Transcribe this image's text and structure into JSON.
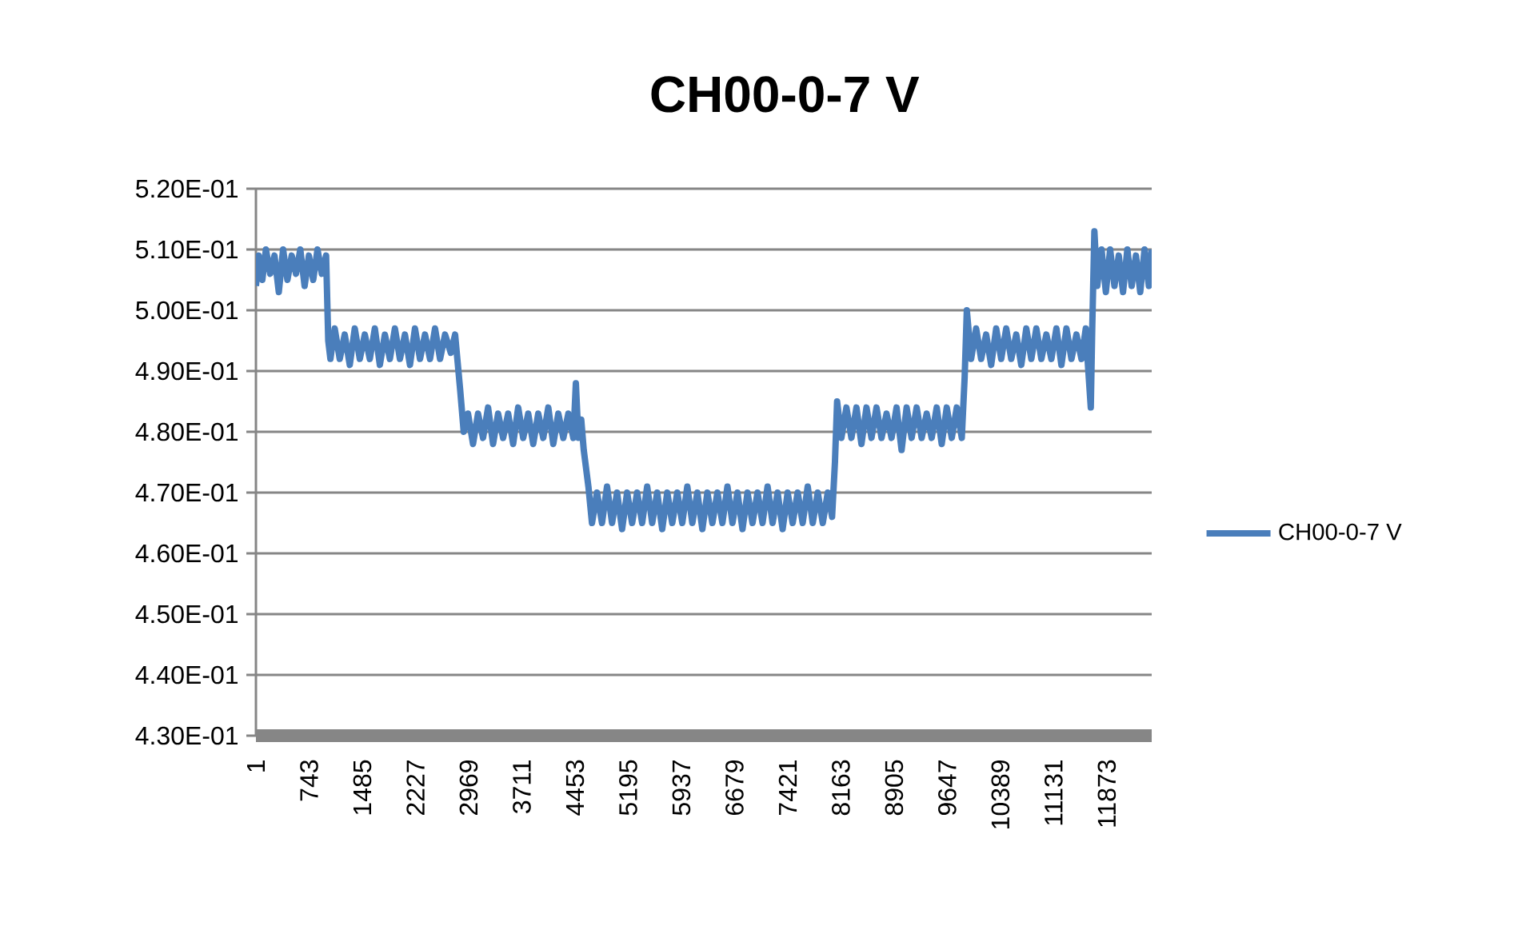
{
  "chart_data": {
    "type": "line",
    "title": "CH00-0-7 V",
    "x": [
      1,
      40,
      90,
      140,
      200,
      260,
      320,
      380,
      440,
      500,
      560,
      620,
      680,
      740,
      800,
      860,
      920,
      980,
      1010,
      1040,
      1100,
      1170,
      1240,
      1310,
      1380,
      1450,
      1520,
      1590,
      1660,
      1730,
      1800,
      1870,
      1940,
      2010,
      2080,
      2150,
      2220,
      2290,
      2360,
      2430,
      2500,
      2570,
      2640,
      2720,
      2780,
      2850,
      2900,
      2960,
      3030,
      3100,
      3170,
      3240,
      3310,
      3380,
      3450,
      3520,
      3590,
      3660,
      3730,
      3800,
      3870,
      3940,
      4010,
      4080,
      4150,
      4220,
      4290,
      4360,
      4430,
      4465,
      4500,
      4540,
      4575,
      4640,
      4690,
      4760,
      4830,
      4900,
      4970,
      5040,
      5110,
      5180,
      5250,
      5320,
      5390,
      5460,
      5530,
      5600,
      5670,
      5740,
      5810,
      5880,
      5950,
      6020,
      6090,
      6160,
      6230,
      6300,
      6370,
      6440,
      6510,
      6580,
      6650,
      6720,
      6790,
      6860,
      6930,
      7000,
      7070,
      7140,
      7210,
      7280,
      7350,
      7420,
      7490,
      7560,
      7630,
      7700,
      7770,
      7840,
      7910,
      7980,
      8040,
      8080,
      8110,
      8170,
      8240,
      8310,
      8380,
      8450,
      8520,
      8590,
      8660,
      8730,
      8800,
      8870,
      8940,
      9010,
      9080,
      9150,
      9220,
      9290,
      9360,
      9430,
      9500,
      9570,
      9640,
      9710,
      9780,
      9850,
      9890,
      9920,
      9980,
      10050,
      10120,
      10190,
      10260,
      10330,
      10400,
      10470,
      10540,
      10610,
      10680,
      10750,
      10820,
      10890,
      10960,
      11030,
      11100,
      11170,
      11240,
      11310,
      11380,
      11450,
      11520,
      11580,
      11610,
      11650,
      11670,
      11700,
      11740,
      11800,
      11860,
      11920,
      11980,
      12040,
      12100,
      12160,
      12220,
      12280,
      12340,
      12400,
      12460,
      12500
    ],
    "series": [
      {
        "name": "CH00-0-7 V",
        "color": "#4a7ebb",
        "values": [
          0.504,
          0.509,
          0.505,
          0.51,
          0.506,
          0.509,
          0.503,
          0.51,
          0.505,
          0.509,
          0.506,
          0.51,
          0.504,
          0.509,
          0.505,
          0.51,
          0.506,
          0.509,
          0.495,
          0.492,
          0.497,
          0.492,
          0.496,
          0.491,
          0.497,
          0.492,
          0.496,
          0.492,
          0.497,
          0.491,
          0.496,
          0.492,
          0.497,
          0.492,
          0.496,
          0.491,
          0.497,
          0.492,
          0.496,
          0.492,
          0.497,
          0.492,
          0.496,
          0.493,
          0.496,
          0.487,
          0.48,
          0.483,
          0.478,
          0.483,
          0.479,
          0.484,
          0.478,
          0.483,
          0.479,
          0.483,
          0.478,
          0.484,
          0.479,
          0.483,
          0.478,
          0.483,
          0.479,
          0.484,
          0.478,
          0.483,
          0.479,
          0.483,
          0.479,
          0.488,
          0.479,
          0.482,
          0.477,
          0.471,
          0.465,
          0.47,
          0.465,
          0.471,
          0.465,
          0.47,
          0.464,
          0.47,
          0.465,
          0.47,
          0.465,
          0.471,
          0.465,
          0.47,
          0.464,
          0.47,
          0.465,
          0.47,
          0.465,
          0.471,
          0.465,
          0.47,
          0.464,
          0.47,
          0.465,
          0.47,
          0.465,
          0.471,
          0.465,
          0.47,
          0.464,
          0.47,
          0.465,
          0.47,
          0.465,
          0.471,
          0.465,
          0.47,
          0.464,
          0.47,
          0.465,
          0.47,
          0.465,
          0.471,
          0.465,
          0.47,
          0.465,
          0.47,
          0.466,
          0.475,
          0.485,
          0.479,
          0.484,
          0.479,
          0.484,
          0.478,
          0.484,
          0.479,
          0.484,
          0.479,
          0.483,
          0.479,
          0.484,
          0.477,
          0.484,
          0.479,
          0.484,
          0.479,
          0.483,
          0.479,
          0.484,
          0.478,
          0.484,
          0.479,
          0.484,
          0.479,
          0.489,
          0.5,
          0.492,
          0.497,
          0.492,
          0.496,
          0.491,
          0.497,
          0.492,
          0.497,
          0.492,
          0.496,
          0.491,
          0.497,
          0.492,
          0.497,
          0.492,
          0.496,
          0.492,
          0.497,
          0.491,
          0.497,
          0.492,
          0.496,
          0.492,
          0.497,
          0.491,
          0.484,
          0.497,
          0.513,
          0.504,
          0.51,
          0.503,
          0.51,
          0.504,
          0.509,
          0.503,
          0.51,
          0.504,
          0.509,
          0.503,
          0.51,
          0.504,
          0.51
        ]
      }
    ],
    "xlim": [
      1,
      12500
    ],
    "ylim": [
      0.43,
      0.52
    ],
    "xticks": [
      1,
      743,
      1485,
      2227,
      2969,
      3711,
      4453,
      5195,
      5937,
      6679,
      7421,
      8163,
      8905,
      9647,
      10389,
      11131,
      11873
    ],
    "yticks": [
      {
        "value": 0.43,
        "label": "4.30E-01"
      },
      {
        "value": 0.44,
        "label": "4.40E-01"
      },
      {
        "value": 0.45,
        "label": "4.50E-01"
      },
      {
        "value": 0.46,
        "label": "4.60E-01"
      },
      {
        "value": 0.47,
        "label": "4.70E-01"
      },
      {
        "value": 0.48,
        "label": "4.80E-01"
      },
      {
        "value": 0.49,
        "label": "4.90E-01"
      },
      {
        "value": 0.5,
        "label": "5.00E-01"
      },
      {
        "value": 0.51,
        "label": "5.10E-01"
      },
      {
        "value": 0.52,
        "label": "5.20E-01"
      }
    ],
    "grid": "y",
    "legend": "right"
  }
}
